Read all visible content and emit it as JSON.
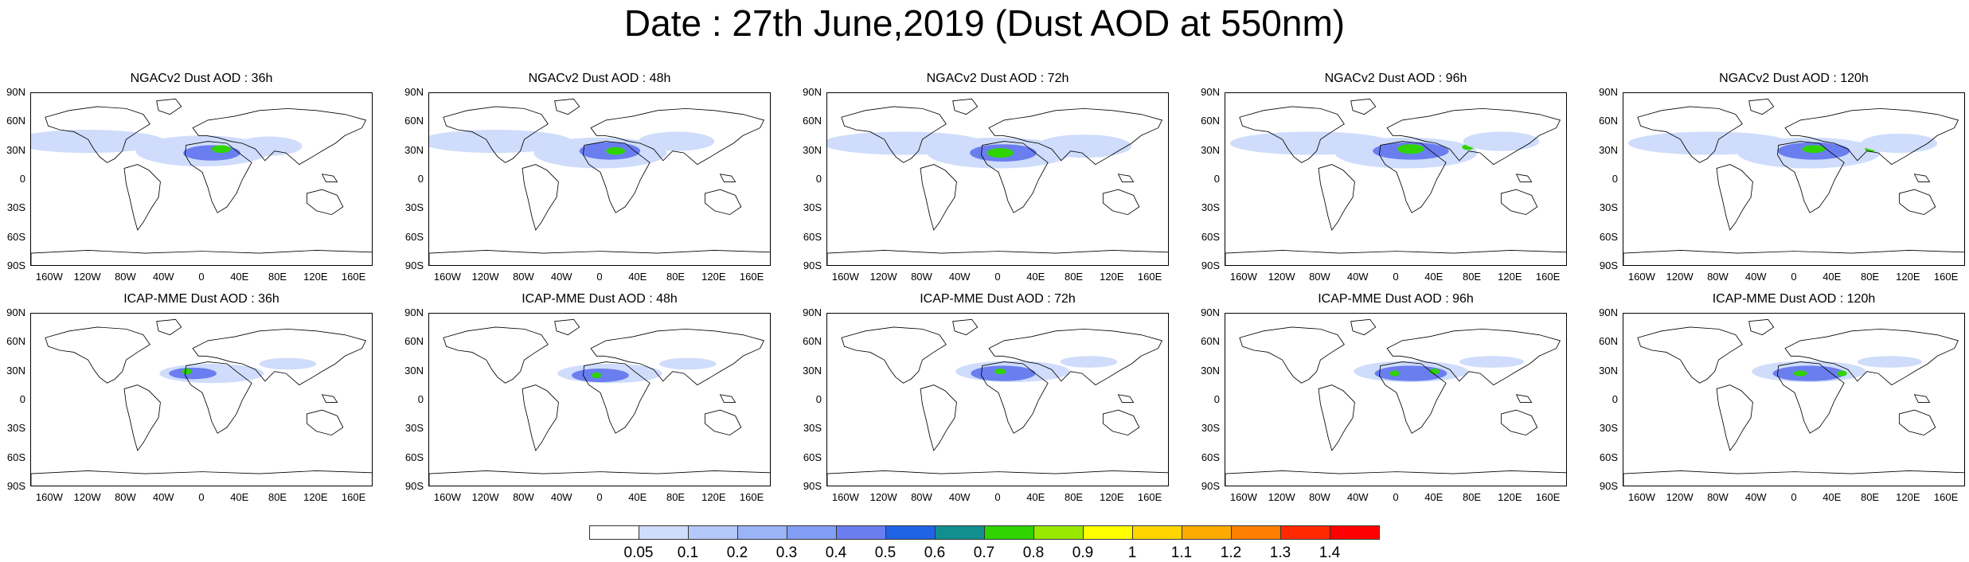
{
  "title": "Date : 27th June,2019 (Dust AOD at 550nm)",
  "panels": [
    {
      "title": "NGACv2 Dust AOD : 36h"
    },
    {
      "title": "NGACv2 Dust AOD : 48h"
    },
    {
      "title": "NGACv2 Dust AOD : 72h"
    },
    {
      "title": "NGACv2 Dust AOD : 96h"
    },
    {
      "title": "NGACv2 Dust AOD : 120h"
    },
    {
      "title": "ICAP-MME Dust AOD : 36h"
    },
    {
      "title": "ICAP-MME Dust AOD : 48h"
    },
    {
      "title": "ICAP-MME Dust AOD : 72h"
    },
    {
      "title": "ICAP-MME Dust AOD : 96h"
    },
    {
      "title": "ICAP-MME Dust AOD : 120h"
    }
  ],
  "lat_labels": [
    "90N",
    "60N",
    "30N",
    "0",
    "30S",
    "60S",
    "90S"
  ],
  "lon_labels": [
    "160W",
    "120W",
    "80W",
    "40W",
    "0",
    "40E",
    "80E",
    "120E",
    "160E"
  ],
  "colorbar": {
    "labels": [
      "0.05",
      "0.1",
      "0.2",
      "0.3",
      "0.4",
      "0.5",
      "0.6",
      "0.7",
      "0.8",
      "0.9",
      "1",
      "1.1",
      "1.2",
      "1.3",
      "1.4"
    ],
    "colors": [
      "#ffffff",
      "#cfdcfb",
      "#b4c8fa",
      "#9bb3f7",
      "#839ef5",
      "#6a7ef0",
      "#1f63e6",
      "#118f8f",
      "#2fd300",
      "#98e800",
      "#ffff00",
      "#ffd400",
      "#ffaa00",
      "#ff7f00",
      "#ff2a00",
      "#ff0000"
    ]
  },
  "colors": {
    "land_outline": "#000000",
    "plume_low": "#cfdcfb",
    "plume_mid": "#6a7ef0",
    "plume_high": "#2fd300"
  }
}
